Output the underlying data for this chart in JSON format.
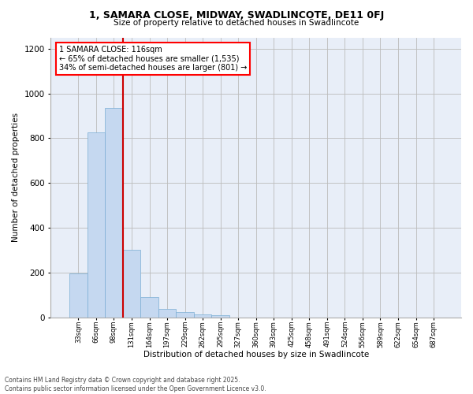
{
  "title": "1, SAMARA CLOSE, MIDWAY, SWADLINCOTE, DE11 0FJ",
  "subtitle": "Size of property relative to detached houses in Swadlincote",
  "xlabel": "Distribution of detached houses by size in Swadlincote",
  "ylabel": "Number of detached properties",
  "bar_color": "#c5d8f0",
  "bar_edge_color": "#7aadd4",
  "grid_color": "#bbbbbb",
  "background_color": "#e8eef8",
  "annotation_text": "1 SAMARA CLOSE: 116sqm\n← 65% of detached houses are smaller (1,535)\n34% of semi-detached houses are larger (801) →",
  "vline_color": "#cc0000",
  "categories": [
    "33sqm",
    "66sqm",
    "98sqm",
    "131sqm",
    "164sqm",
    "197sqm",
    "229sqm",
    "262sqm",
    "295sqm",
    "327sqm",
    "360sqm",
    "393sqm",
    "425sqm",
    "458sqm",
    "491sqm",
    "524sqm",
    "556sqm",
    "589sqm",
    "622sqm",
    "654sqm",
    "687sqm"
  ],
  "values": [
    195,
    825,
    935,
    300,
    90,
    38,
    22,
    13,
    8,
    0,
    0,
    0,
    0,
    0,
    0,
    0,
    0,
    0,
    0,
    0,
    0
  ],
  "footer": "Contains HM Land Registry data © Crown copyright and database right 2025.\nContains public sector information licensed under the Open Government Licence v3.0.",
  "ylim": [
    0,
    1250
  ],
  "yticks": [
    0,
    200,
    400,
    600,
    800,
    1000,
    1200
  ],
  "property_sqm": 116,
  "bin_min": 33,
  "bin_width": 33
}
